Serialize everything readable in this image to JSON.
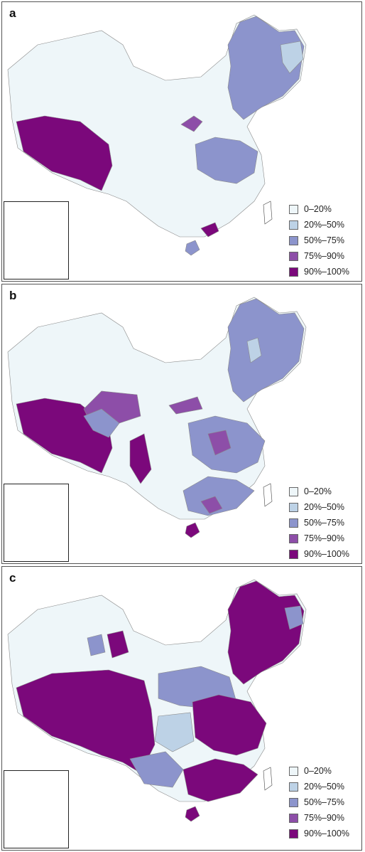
{
  "legend": {
    "items": [
      {
        "label": "0–20%",
        "color": "#eef6f9"
      },
      {
        "label": "20%–50%",
        "color": "#bdd2e6"
      },
      {
        "label": "50%–75%",
        "color": "#8c94cc"
      },
      {
        "label": "75%–90%",
        "color": "#8d4ea8"
      },
      {
        "label": "90%–100%",
        "color": "#7b087b"
      }
    ]
  },
  "panels": [
    {
      "label": "a"
    },
    {
      "label": "b"
    },
    {
      "label": "c"
    }
  ]
}
